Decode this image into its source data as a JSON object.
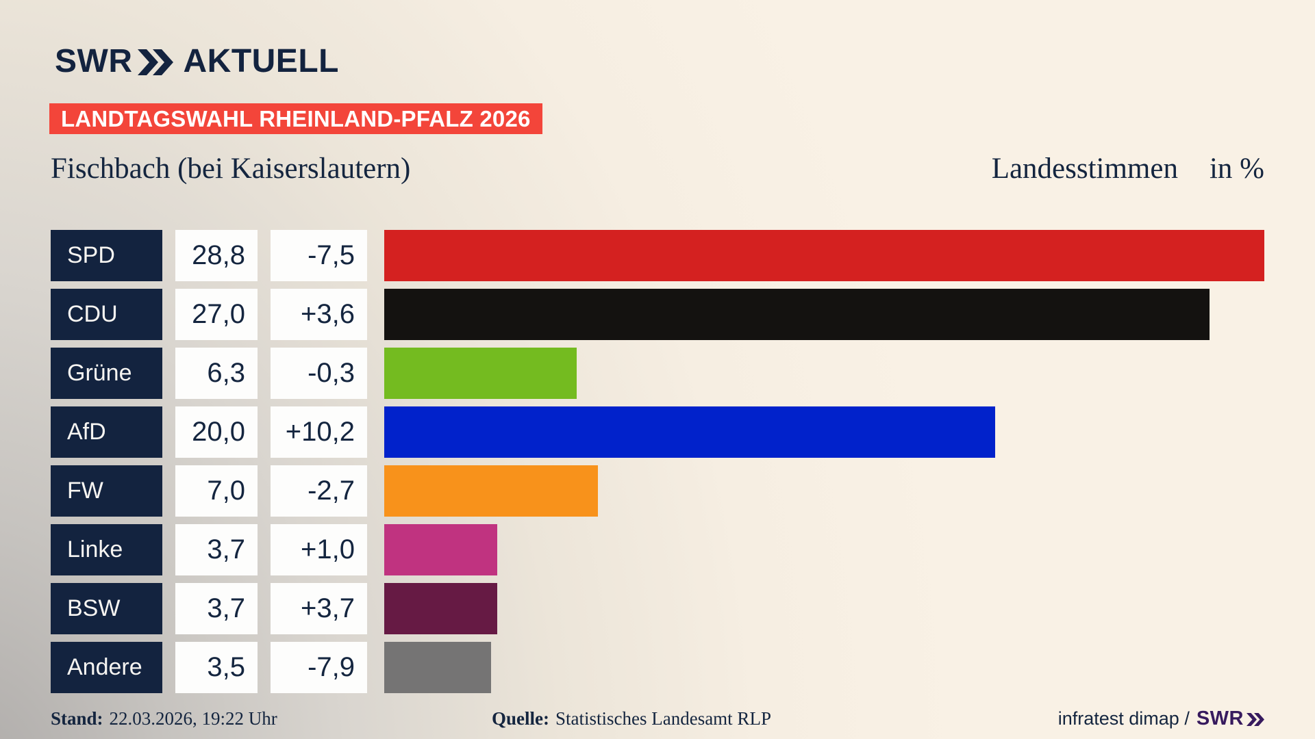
{
  "header": {
    "logo": {
      "swr": "SWR",
      "aktuell": "AKTUELL",
      "chevrons_icon": "double-chevron-right"
    },
    "badge": "LANDTAGSWAHL RHEINLAND-PFALZ 2026"
  },
  "titles": {
    "region": "Fischbach (bei Kaiserslautern)",
    "measure": "Landesstimmen",
    "unit": "in %"
  },
  "chart_data": {
    "type": "bar",
    "orientation": "horizontal",
    "title": "Fischbach (bei Kaiserslautern)",
    "subtitle": "Landesstimmen in %",
    "categories": [
      "SPD",
      "CDU",
      "Grüne",
      "AfD",
      "FW",
      "Linke",
      "BSW",
      "Andere"
    ],
    "values": [
      28.8,
      27.0,
      6.3,
      20.0,
      7.0,
      3.7,
      3.7,
      3.5
    ],
    "deltas": [
      -7.5,
      3.6,
      -0.3,
      10.2,
      -2.7,
      1.0,
      3.7,
      -7.9
    ],
    "value_labels": [
      "28,8",
      "27,0",
      "6,3",
      "20,0",
      "7,0",
      "3,7",
      "3,7",
      "3,5"
    ],
    "delta_labels": [
      "-7,5",
      "+3,6",
      "-0,3",
      "+10,2",
      "-2,7",
      "+1,0",
      "+3,7",
      "-7,9"
    ],
    "bar_colors": [
      "#d42120",
      "#141210",
      "#74bb20",
      "#0122cb",
      "#f8921b",
      "#c03380",
      "#661a44",
      "#757474"
    ],
    "xlim": [
      0,
      28.8
    ],
    "unit": "%",
    "grid": false,
    "legend_position": "none"
  },
  "footer": {
    "stand_label": "Stand:",
    "stand_value": "22.03.2026, 19:22 Uhr",
    "quelle_label": "Quelle:",
    "quelle_value": "Statistisches Landesamt RLP",
    "credit_text": "infratest dimap /",
    "credit_brand": "SWR",
    "credit_chevrons_icon": "double-chevron-right"
  },
  "colors": {
    "background_top": "#f8f0e4",
    "background_corner": "#adaaa8",
    "navy": "#14253f",
    "label_box_navy": "#13233f",
    "badge_red": "#f3453a",
    "cell_white": "#fdfdfc",
    "credit_purple": "#371a5e"
  }
}
